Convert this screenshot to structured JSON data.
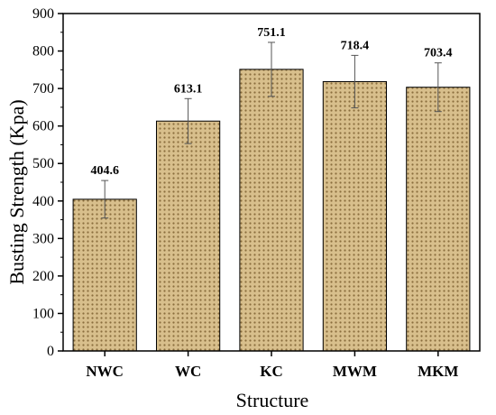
{
  "chart_data": {
    "type": "bar",
    "categories": [
      "NWC",
      "WC",
      "KC",
      "MWM",
      "MKM"
    ],
    "values": [
      404.6,
      613.1,
      751.1,
      718.4,
      703.4
    ],
    "value_labels": [
      "404.6",
      "613.1",
      "751.1",
      "718.4",
      "703.4"
    ],
    "error": [
      50,
      60,
      72,
      70,
      65
    ],
    "xlabel": "Structure",
    "ylabel": "Busting Strength (Kpa)",
    "ylim": [
      0,
      900
    ],
    "yticks": [
      0,
      100,
      200,
      300,
      400,
      500,
      600,
      700,
      800,
      900
    ],
    "ytick_labels": [
      "0",
      "100",
      "200",
      "300",
      "400",
      "500",
      "600",
      "700",
      "800",
      "900"
    ],
    "grid": false,
    "bar_color": "#d8bf8c",
    "dot_color": "#8a6e3d",
    "edge_color": "#000000"
  }
}
